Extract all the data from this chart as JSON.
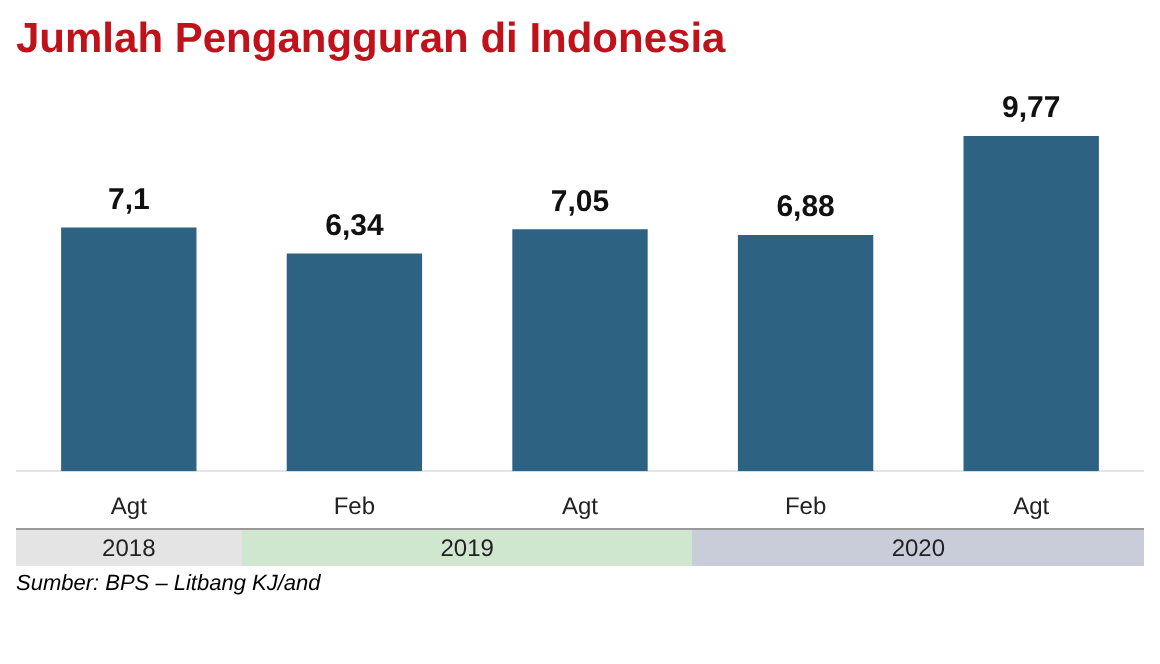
{
  "chart_data": {
    "type": "bar",
    "title": "Jumlah Pengangguran di Indonesia",
    "categories": [
      "Agt",
      "Feb",
      "Agt",
      "Feb",
      "Agt"
    ],
    "values": [
      7.1,
      6.34,
      7.05,
      6.88,
      9.77
    ],
    "value_labels": [
      "7,1",
      "6,34",
      "7,05",
      "6,88",
      "9,77"
    ],
    "color": "#2e6282",
    "annotations": [
      "2018",
      "2019",
      "2020",
      "Sumber: BPS – Litbang KJ/and"
    ],
    "grid": false,
    "legend": false
  }
}
